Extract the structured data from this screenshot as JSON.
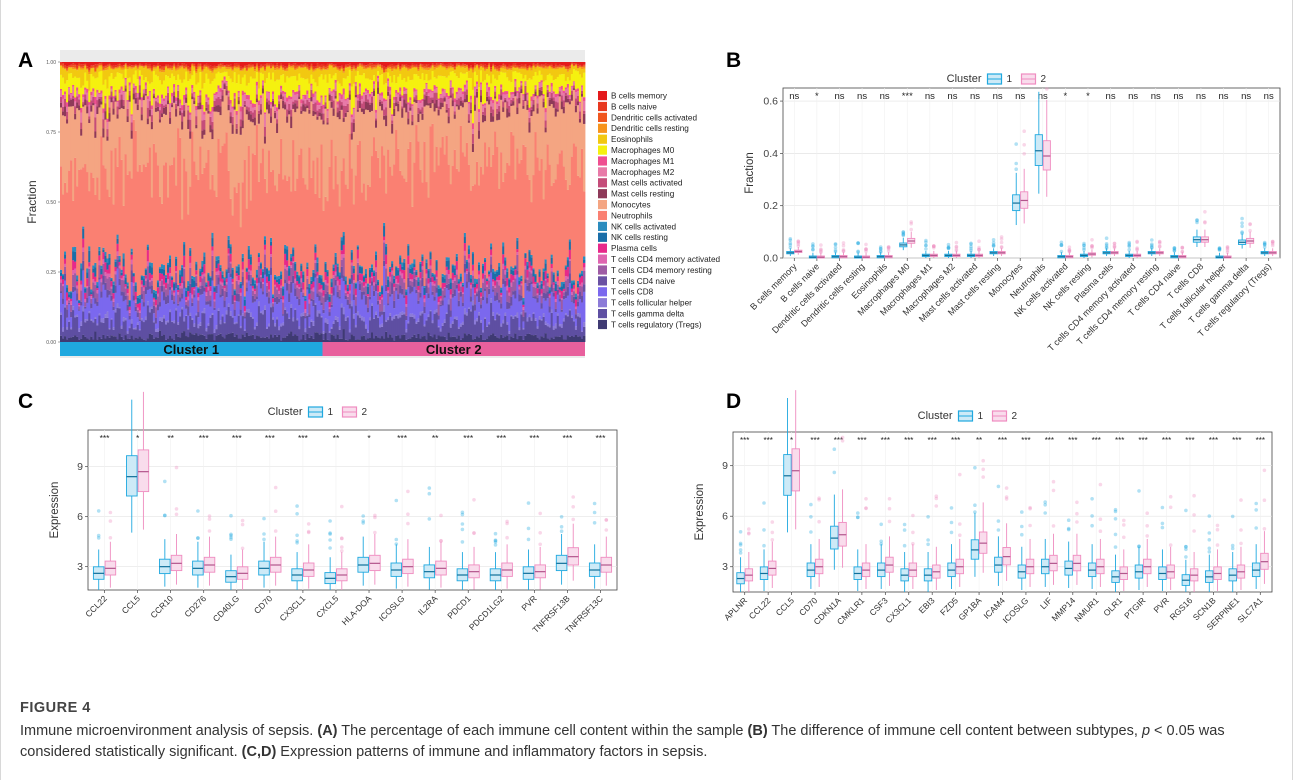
{
  "panels": {
    "a": {
      "letter": "A"
    },
    "b": {
      "letter": "B"
    },
    "c": {
      "letter": "C"
    },
    "d": {
      "letter": "D"
    }
  },
  "caption": {
    "figure": "FIGURE 4",
    "intro": "Immune microenvironment analysis of sepsis. ",
    "a_tag": "(A)",
    "a_text": " The percentage of each immune cell content within the sample ",
    "b_tag": "(B)",
    "b_text": " The difference of immune cell content between subtypes, ",
    "p_symbol": "p",
    "p_text": " < 0.05 was considered statistically significant. ",
    "cd_tag": "(C,D)",
    "cd_text": " Expression patterns of immune and inflammatory factors in sepsis."
  },
  "colors": {
    "cluster1": "#1fa8df",
    "cluster2": "#ef8cc0"
  },
  "chart_data": [
    {
      "id": "A",
      "type": "area",
      "ylabel": "Fraction",
      "yticks": [
        "0.00",
        "0.25",
        "0.50",
        "0.75",
        "1.00"
      ],
      "ylim": [
        0,
        1
      ],
      "group_bar": [
        "Cluster 1",
        "Cluster 2"
      ],
      "legend": [
        {
          "name": "B cells memory",
          "color": "#e41a1c",
          "mean": 0.01
        },
        {
          "name": "B cells naive",
          "color": "#e8381f",
          "mean": 0.005
        },
        {
          "name": "Dendritic cells activated",
          "color": "#f0561e",
          "mean": 0.005
        },
        {
          "name": "Dendritic cells resting",
          "color": "#f7941d",
          "mean": 0.005
        },
        {
          "name": "Eosinophils",
          "color": "#f2c811",
          "mean": 0.03
        },
        {
          "name": "Macrophages M0",
          "color": "#f5f10f",
          "mean": 0.06
        },
        {
          "name": "Macrophages M1",
          "color": "#ef4f91",
          "mean": 0.01
        },
        {
          "name": "Macrophages M2",
          "color": "#e87aa8",
          "mean": 0.02
        },
        {
          "name": "Mast cells activated",
          "color": "#c54d7a",
          "mean": 0.02
        },
        {
          "name": "Mast cells resting",
          "color": "#8e3a59",
          "mean": 0.02
        },
        {
          "name": "Monocytes",
          "color": "#f4a582",
          "mean": 0.21
        },
        {
          "name": "Neutrophils",
          "color": "#fa8072",
          "mean": 0.39
        },
        {
          "name": "NK cells activated",
          "color": "#2b8cbe",
          "mean": 0.01
        },
        {
          "name": "NK cells resting",
          "color": "#1a6ea8",
          "mean": 0.02
        },
        {
          "name": "Plasma cells",
          "color": "#e7298a",
          "mean": 0.02
        },
        {
          "name": "T cells CD4 memory activated",
          "color": "#df65b0",
          "mean": 0.01
        },
        {
          "name": "T cells CD4 memory resting",
          "color": "#9e5ba4",
          "mean": 0.03
        },
        {
          "name": "T cells CD4 naive",
          "color": "#6a51a3",
          "mean": 0.02
        },
        {
          "name": "T cells CD8",
          "color": "#7b68ee",
          "mean": 0.07
        },
        {
          "name": "T cells follicular helper",
          "color": "#8c7bd8",
          "mean": 0.01
        },
        {
          "name": "T cells gamma delta",
          "color": "#5e4fa2",
          "mean": 0.06
        },
        {
          "name": "T cells regulatory (Tregs)",
          "color": "#3f3a73",
          "mean": 0.02
        }
      ]
    },
    {
      "id": "B",
      "type": "box",
      "legend_title": "Cluster",
      "series": [
        "1",
        "2"
      ],
      "ylabel": "Fraction",
      "ylim": [
        0,
        0.65
      ],
      "yticks": [
        "0.0",
        "0.2",
        "0.4",
        "0.6"
      ],
      "categories": [
        "B cells memory",
        "B cells naive",
        "Dendritic cells activated",
        "Dendritic cells resting",
        "Eosinophils",
        "Macrophages M0",
        "Macrophages M1",
        "Macrophages M2",
        "Mast cells activated",
        "Mast cells resting",
        "Monocytes",
        "Neutrophils",
        "NK cells activated",
        "NK cells resting",
        "Plasma cells",
        "T cells CD4 memory activated",
        "T cells CD4 memory resting",
        "T cells CD4 naive",
        "T cells CD8",
        "T cells follicular helper",
        "T cells gamma delta",
        "T cells regulatory (Tregs)"
      ],
      "significance": [
        "ns",
        "*",
        "ns",
        "ns",
        "ns",
        "***",
        "ns",
        "ns",
        "ns",
        "ns",
        "ns",
        "ns",
        "*",
        "*",
        "ns",
        "ns",
        "ns",
        "ns",
        "ns",
        "ns",
        "ns",
        "ns"
      ],
      "medians_cluster1": [
        0.02,
        0.003,
        0.005,
        0.003,
        0.005,
        0.05,
        0.01,
        0.01,
        0.01,
        0.02,
        0.21,
        0.41,
        0.005,
        0.01,
        0.02,
        0.01,
        0.02,
        0.005,
        0.07,
        0.003,
        0.06,
        0.02
      ],
      "medians_cluster2": [
        0.025,
        0.003,
        0.005,
        0.003,
        0.005,
        0.065,
        0.01,
        0.01,
        0.01,
        0.02,
        0.22,
        0.39,
        0.005,
        0.015,
        0.02,
        0.01,
        0.02,
        0.005,
        0.07,
        0.003,
        0.065,
        0.02
      ]
    },
    {
      "id": "C",
      "type": "box",
      "legend_title": "Cluster",
      "series": [
        "1",
        "2"
      ],
      "ylabel": "Expression",
      "ylim": [
        1.6,
        11.2
      ],
      "yticks": [
        "3",
        "6",
        "9"
      ],
      "categories": [
        "CCL22",
        "CCL5",
        "CCR10",
        "CD276",
        "CD40LG",
        "CD70",
        "CX3CL1",
        "CXCL5",
        "HLA-DOA",
        "ICOSLG",
        "IL2RA",
        "PDCD1",
        "PDCD1LG2",
        "PVR",
        "TNFRSF13B",
        "TNFRSF13C"
      ],
      "significance": [
        "***",
        "*",
        "**",
        "***",
        "***",
        "***",
        "***",
        "**",
        "*",
        "***",
        "**",
        "***",
        "***",
        "***",
        "***",
        "***"
      ],
      "medians_cluster1": [
        2.6,
        8.4,
        3.0,
        2.9,
        2.4,
        2.9,
        2.5,
        2.3,
        3.1,
        2.8,
        2.7,
        2.5,
        2.5,
        2.6,
        3.2,
        2.8
      ],
      "medians_cluster2": [
        2.9,
        8.7,
        3.2,
        3.1,
        2.6,
        3.1,
        2.8,
        2.5,
        3.2,
        3.0,
        2.9,
        2.7,
        2.8,
        2.7,
        3.6,
        3.1
      ]
    },
    {
      "id": "D",
      "type": "box",
      "legend_title": "Cluster",
      "series": [
        "1",
        "2"
      ],
      "ylabel": "Expression",
      "ylim": [
        1.5,
        11
      ],
      "yticks": [
        "3",
        "6",
        "9"
      ],
      "categories": [
        "APLNR",
        "CCL22",
        "CCL5",
        "CD70",
        "CDKN1A",
        "CMKLR1",
        "CSF3",
        "CX3CL1",
        "EBI3",
        "FZD5",
        "GP1BA",
        "ICAM4",
        "ICOSLG",
        "LIF",
        "MMP14",
        "NMUR1",
        "OLR1",
        "PTGIR",
        "PVR",
        "RGS16",
        "SCN1B",
        "SERPINE1",
        "SLC7A1"
      ],
      "significance": [
        "***",
        "***",
        "*",
        "***",
        "***",
        "***",
        "***",
        "***",
        "***",
        "***",
        "**",
        "***",
        "***",
        "***",
        "***",
        "***",
        "***",
        "***",
        "***",
        "***",
        "***",
        "***",
        "***"
      ],
      "medians_cluster1": [
        2.3,
        2.6,
        8.4,
        2.8,
        4.7,
        2.6,
        2.8,
        2.5,
        2.5,
        2.8,
        4.0,
        3.1,
        2.7,
        3.0,
        2.9,
        2.8,
        2.4,
        2.7,
        2.6,
        2.2,
        2.4,
        2.5,
        2.8
      ],
      "medians_cluster2": [
        2.5,
        2.9,
        8.7,
        3.0,
        4.9,
        2.8,
        3.1,
        2.8,
        2.7,
        3.0,
        4.4,
        3.6,
        3.0,
        3.2,
        3.2,
        3.0,
        2.6,
        3.0,
        2.7,
        2.5,
        2.6,
        2.7,
        3.3
      ]
    }
  ]
}
